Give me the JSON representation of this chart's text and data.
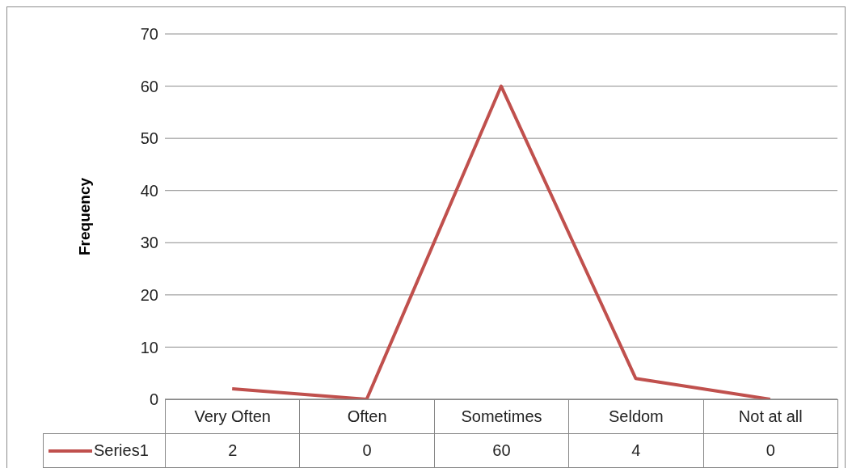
{
  "chart_data": {
    "type": "line",
    "ylabel": "Frequency",
    "categories": [
      "Very Often",
      "Often",
      "Sometimes",
      "Seldom",
      "Not at all"
    ],
    "series": [
      {
        "name": "Series1",
        "color": "#c0504d",
        "values": [
          2,
          0,
          60,
          4,
          0
        ]
      }
    ],
    "ylim": [
      0,
      70
    ],
    "yticks": [
      0,
      10,
      20,
      30,
      40,
      50,
      60,
      70
    ],
    "grid": "y",
    "legend": "bottom",
    "data_labels": true,
    "marker": "none"
  }
}
